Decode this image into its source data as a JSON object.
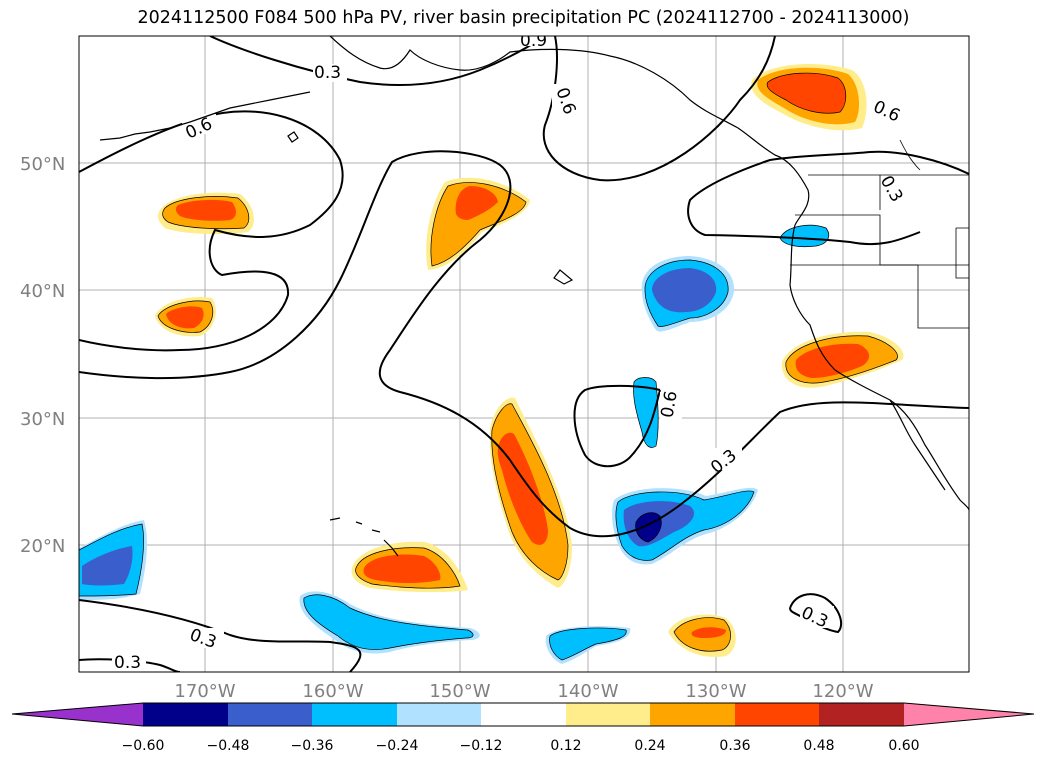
{
  "title": "2024112500 F084 500 hPa PV, river basin precipitation PC (2024112700 - 2024113000)",
  "lat_labels": [
    "50°N",
    "40°N",
    "30°N",
    "20°N"
  ],
  "lon_labels": [
    "170°W",
    "160°W",
    "150°W",
    "140°W",
    "130°W",
    "120°W"
  ],
  "contour_labels": [
    "0.9",
    "0.3",
    "0.6",
    "0.6",
    "0.6",
    "0.3",
    "0.6",
    "0.3",
    "0.3",
    "0.3",
    "0.3"
  ],
  "colorbar": {
    "tick_labels": [
      "−0.60",
      "−0.48",
      "−0.36",
      "−0.24",
      "−0.12",
      "0.12",
      "0.24",
      "0.36",
      "0.48",
      "0.60"
    ],
    "colors": [
      "#9932cc",
      "#00008b",
      "#3a5fcd",
      "#00bfff",
      "#b0e2ff",
      "#ffffff",
      "#ffec8b",
      "#ffa500",
      "#ff4500",
      "#b22222",
      "#ff82ab"
    ]
  },
  "colors": {
    "deep_blue": "#00008b",
    "royal_blue": "#3a5fcd",
    "sky_blue": "#00bfff",
    "light_blue": "#b0e2ff",
    "yellow": "#ffec8b",
    "orange": "#ffa500",
    "red_orange": "#ff4500",
    "grid": "#b0b0b0"
  }
}
